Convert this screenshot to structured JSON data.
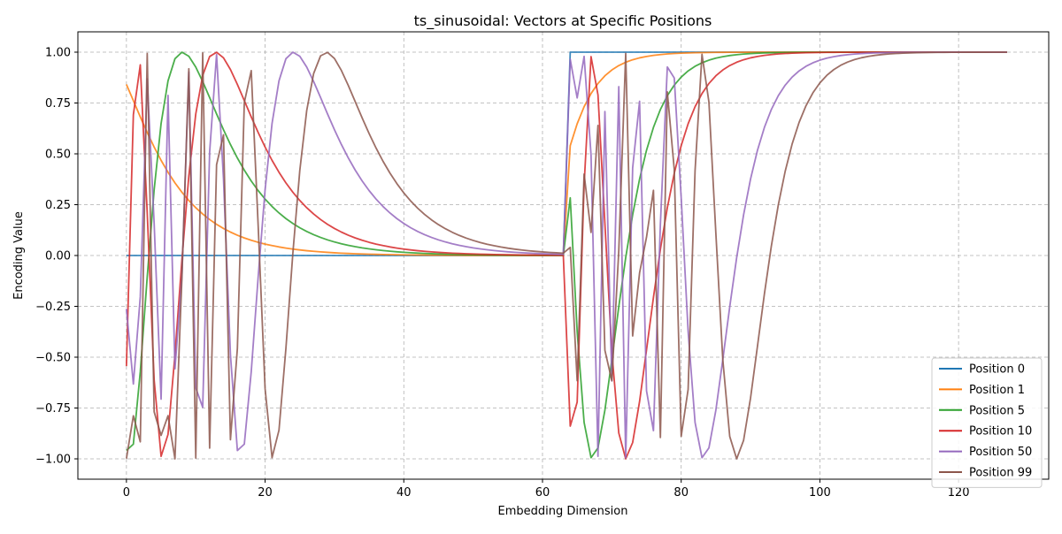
{
  "chart_data": {
    "type": "line",
    "title": "ts_sinusoidal: Vectors at Specific Positions",
    "xlabel": "Embedding Dimension",
    "ylabel": "Encoding Value",
    "xlim": [
      -7,
      133
    ],
    "ylim": [
      -1.1,
      1.1
    ],
    "xticks": [
      0,
      20,
      40,
      60,
      80,
      100,
      120
    ],
    "yticks": [
      -1.0,
      -0.75,
      -0.5,
      -0.25,
      0.0,
      0.25,
      0.5,
      0.75,
      1.0
    ],
    "xtick_labels": [
      "0",
      "20",
      "40",
      "60",
      "80",
      "100",
      "120"
    ],
    "ytick_labels": [
      "−1.00",
      "−0.75",
      "−0.50",
      "−0.25",
      "0.00",
      "0.25",
      "0.50",
      "0.75",
      "1.00"
    ],
    "grid": true,
    "legend_position": "bottom-right",
    "d_model": 128,
    "series": [
      {
        "name": "Position 0",
        "position": 0,
        "color": "#1f77b4"
      },
      {
        "name": "Position 1",
        "position": 1,
        "color": "#ff7f0e"
      },
      {
        "name": "Position 5",
        "position": 5,
        "color": "#2ca02c"
      },
      {
        "name": "Position 10",
        "position": 10,
        "color": "#d62728"
      },
      {
        "name": "Position 50",
        "position": 50,
        "color": "#9467bd"
      },
      {
        "name": "Position 99",
        "position": 99,
        "color": "#8c564b"
      }
    ]
  }
}
